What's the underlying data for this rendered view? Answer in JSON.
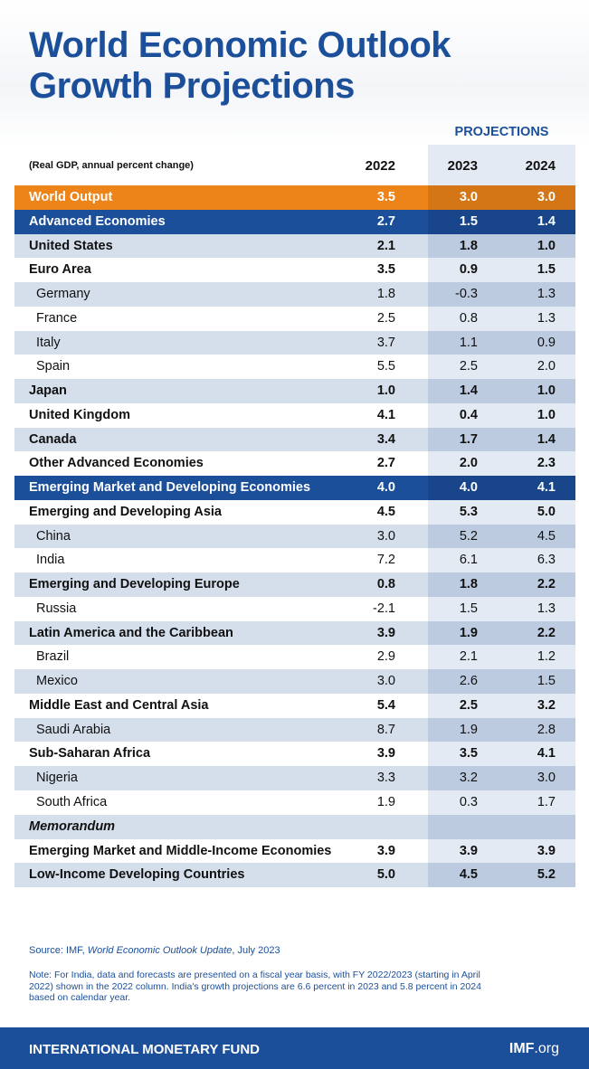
{
  "header": {
    "title_lines": [
      "World Economic Outlook",
      "Growth Projections"
    ],
    "projections_label": "PROJECTIONS",
    "units": "(Real GDP, annual percent change)",
    "years": [
      "2022",
      "2023",
      "2024"
    ]
  },
  "table": {
    "rows": [
      {
        "label": "World Output",
        "values": [
          "3.5",
          "3.0",
          "3.0"
        ],
        "highlight": "#ec8419"
      },
      {
        "label": "Advanced Economies",
        "values": [
          "2.7",
          "1.5",
          "1.4"
        ],
        "highlight": "#1c4f9a"
      },
      {
        "label": "United States",
        "values": [
          "2.1",
          "1.8",
          "1.0"
        ]
      },
      {
        "label": "Euro Area",
        "values": [
          "3.5",
          "0.9",
          "1.5"
        ]
      },
      {
        "label": "Germany",
        "values": [
          "1.8",
          "-0.3",
          "1.3"
        ],
        "indent": true
      },
      {
        "label": "France",
        "values": [
          "2.5",
          "0.8",
          "1.3"
        ],
        "indent": true
      },
      {
        "label": "Italy",
        "values": [
          "3.7",
          "1.1",
          "0.9"
        ],
        "indent": true
      },
      {
        "label": "Spain",
        "values": [
          "5.5",
          "2.5",
          "2.0"
        ],
        "indent": true
      },
      {
        "label": "Japan",
        "values": [
          "1.0",
          "1.4",
          "1.0"
        ]
      },
      {
        "label": "United Kingdom",
        "values": [
          "4.1",
          "0.4",
          "1.0"
        ]
      },
      {
        "label": "Canada",
        "values": [
          "3.4",
          "1.7",
          "1.4"
        ]
      },
      {
        "label": "Other Advanced Economies",
        "values": [
          "2.7",
          "2.0",
          "2.3"
        ]
      },
      {
        "label": "Emerging Market and Developing Economies",
        "values": [
          "4.0",
          "4.0",
          "4.1"
        ],
        "highlight": "#1c4f9a"
      },
      {
        "label": "Emerging and Developing Asia",
        "values": [
          "4.5",
          "5.3",
          "5.0"
        ]
      },
      {
        "label": "China",
        "values": [
          "3.0",
          "5.2",
          "4.5"
        ],
        "indent": true
      },
      {
        "label": "India",
        "values": [
          "7.2",
          "6.1",
          "6.3"
        ],
        "indent": true
      },
      {
        "label": "Emerging and Developing Europe",
        "values": [
          "0.8",
          "1.8",
          "2.2"
        ]
      },
      {
        "label": "Russia",
        "values": [
          "-2.1",
          "1.5",
          "1.3"
        ],
        "indent": true
      },
      {
        "label": "Latin America and the Caribbean",
        "values": [
          "3.9",
          "1.9",
          "2.2"
        ]
      },
      {
        "label": "Brazil",
        "values": [
          "2.9",
          "2.1",
          "1.2"
        ],
        "indent": true
      },
      {
        "label": "Mexico",
        "values": [
          "3.0",
          "2.6",
          "1.5"
        ],
        "indent": true
      },
      {
        "label": "Middle East and Central Asia",
        "values": [
          "5.4",
          "2.5",
          "3.2"
        ]
      },
      {
        "label": "Saudi Arabia",
        "values": [
          "8.7",
          "1.9",
          "2.8"
        ],
        "indent": true
      },
      {
        "label": "Sub-Saharan Africa",
        "values": [
          "3.9",
          "3.5",
          "4.1"
        ]
      },
      {
        "label": "Nigeria",
        "values": [
          "3.3",
          "3.2",
          "3.0"
        ],
        "indent": true
      },
      {
        "label": "South Africa",
        "values": [
          "1.9",
          "0.3",
          "1.7"
        ],
        "indent": true
      },
      {
        "label": "Memorandum",
        "values": [],
        "italic": true
      },
      {
        "label": "Emerging Market and Middle-Income Economies",
        "values": [
          "3.9",
          "3.9",
          "3.9"
        ]
      },
      {
        "label": "Low-Income Developing Countries",
        "values": [
          "5.0",
          "4.5",
          "5.2"
        ]
      }
    ]
  },
  "footer": {
    "source": [
      "Source: IMF, ",
      "World Economic Outlook Update",
      ", July 2023"
    ],
    "note": "Note: For India, data and forecasts are presented on a fiscal year basis, with FY 2022/2023 (starting in April 2022) shown in the 2022 column. India's growth projections are 6.6 percent in 2023 and 5.8 percent in 2024 based on calendar year.",
    "organization": "INTERNATIONAL MONETARY FUND",
    "site": [
      "IMF",
      ".org"
    ]
  }
}
